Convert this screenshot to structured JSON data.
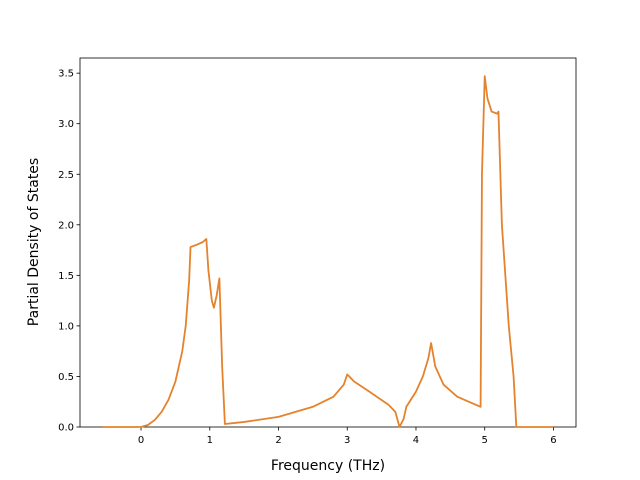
{
  "chart_data": {
    "type": "line",
    "xlabel": "Frequency (THz)",
    "ylabel": "Partial Density of States",
    "x": [
      -0.56,
      0,
      0.1,
      0.2,
      0.3,
      0.4,
      0.5,
      0.6,
      0.65,
      0.7,
      0.72,
      0.8,
      0.9,
      0.95,
      0.98,
      1.03,
      1.06,
      1.1,
      1.14,
      1.18,
      1.22,
      1.5,
      2.0,
      2.5,
      2.8,
      2.95,
      3.0,
      3.1,
      3.3,
      3.6,
      3.7,
      3.72,
      3.76,
      3.82,
      3.86,
      4.0,
      4.1,
      4.18,
      4.22,
      4.28,
      4.4,
      4.6,
      4.8,
      4.94,
      4.96,
      5.0,
      5.04,
      5.1,
      5.18,
      5.2,
      5.25,
      5.35,
      5.42,
      5.46,
      6.0
    ],
    "series": [
      {
        "color": "#e5822c",
        "values": [
          0,
          0,
          0.02,
          0.07,
          0.15,
          0.27,
          0.45,
          0.75,
          1.0,
          1.45,
          1.78,
          1.8,
          1.83,
          1.86,
          1.55,
          1.25,
          1.18,
          1.3,
          1.47,
          0.6,
          0.03,
          0.05,
          0.1,
          0.2,
          0.3,
          0.42,
          0.52,
          0.45,
          0.36,
          0.22,
          0.15,
          0.1,
          0.0,
          0.08,
          0.2,
          0.35,
          0.5,
          0.68,
          0.83,
          0.6,
          0.42,
          0.3,
          0.24,
          0.2,
          2.5,
          3.47,
          3.25,
          3.12,
          3.1,
          3.12,
          2.0,
          1.0,
          0.5,
          0.0,
          0
        ]
      }
    ],
    "xlim": [
      -0.888,
      6.328
    ],
    "ylim": [
      0,
      3.65
    ],
    "xticks": [
      0,
      1,
      2,
      3,
      4,
      5,
      6
    ],
    "yticks": [
      {
        "value": 0,
        "label": "0.0"
      },
      {
        "value": 0.5,
        "label": "0.5"
      },
      {
        "value": 1,
        "label": "1.0"
      },
      {
        "value": 1.5,
        "label": "1.5"
      },
      {
        "value": 2,
        "label": "2.0"
      },
      {
        "value": 2.5,
        "label": "2.5"
      },
      {
        "value": 3,
        "label": "3.0"
      },
      {
        "value": 3.5,
        "label": "3.5"
      }
    ]
  }
}
